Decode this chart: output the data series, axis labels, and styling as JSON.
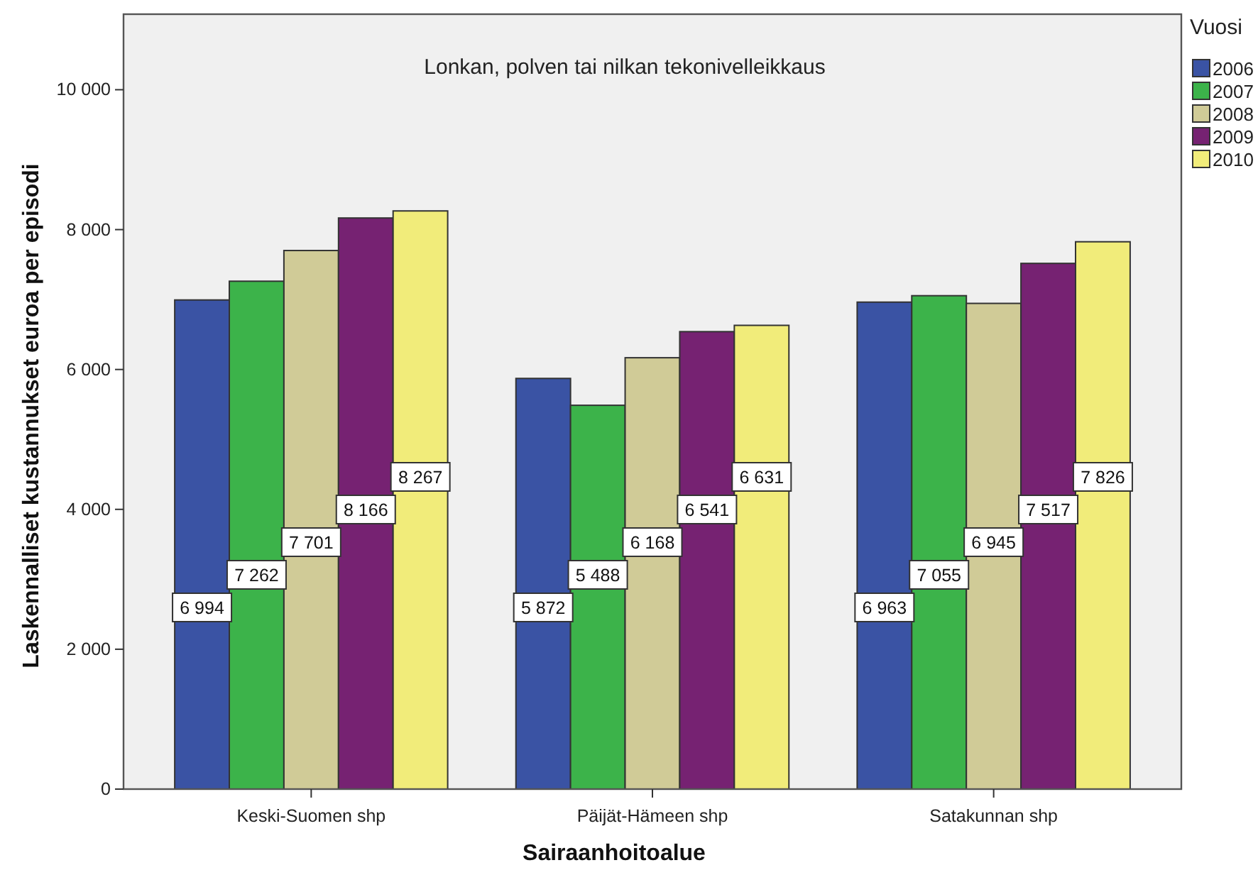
{
  "chart_data": {
    "type": "bar",
    "title": "Lonkan, polven tai nilkan tekonivelleikkaus",
    "xlabel": "Sairaanhoitoalue",
    "ylabel": "Laskennalliset kustannukset euroa per episodi",
    "legend_title": "Vuosi",
    "categories": [
      "Keski-Suomen shp",
      "Päijät-Hämeen shp",
      "Satakunnan shp"
    ],
    "series": [
      {
        "name": "2006",
        "color": "#3a53a4",
        "values": [
          6994,
          5872,
          6963
        ],
        "value_labels": [
          "6 994",
          "5 872",
          "6 963"
        ]
      },
      {
        "name": "2007",
        "color": "#3cb34a",
        "values": [
          7262,
          5488,
          7055
        ],
        "value_labels": [
          "7 262",
          "5 488",
          "7 055"
        ]
      },
      {
        "name": "2008",
        "color": "#d0cb97",
        "values": [
          7701,
          6168,
          6945
        ],
        "value_labels": [
          "7 701",
          "6 168",
          "6 945"
        ]
      },
      {
        "name": "2009",
        "color": "#762272",
        "values": [
          8166,
          6541,
          7517
        ],
        "value_labels": [
          "8 166",
          "6 541",
          "7 517"
        ]
      },
      {
        "name": "2010",
        "color": "#f1ec7a",
        "values": [
          8267,
          6631,
          7826
        ],
        "value_labels": [
          "8 267",
          "6 631",
          "7 826"
        ]
      }
    ],
    "ylim": [
      0,
      11080
    ],
    "yticks": [
      0,
      {
        "value": 2000,
        "label": "2 000"
      },
      {
        "value": 4000,
        "label": "4 000"
      },
      {
        "value": 6000,
        "label": "6 000"
      },
      {
        "value": 8000,
        "label": "8 000"
      },
      {
        "value": 10000,
        "label": "10 000"
      }
    ],
    "legend": "top right"
  }
}
